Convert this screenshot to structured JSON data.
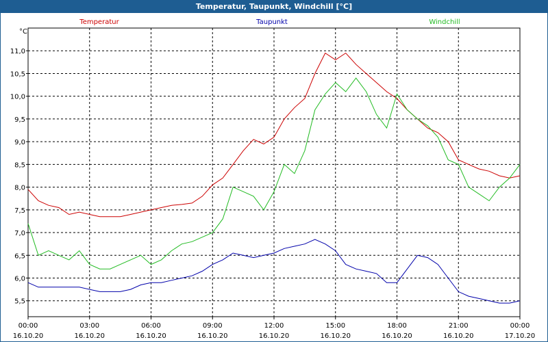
{
  "window": {
    "title": "Temperatur, Taupunkt, Windchill [°C]"
  },
  "chart_data": {
    "type": "line",
    "title": "Temperatur, Taupunkt, Windchill [°C]",
    "ylabel": "°C",
    "ylim": [
      5.15,
      11.5
    ],
    "yticks": [
      "5,5",
      "6,0",
      "6,5",
      "7,0",
      "7,5",
      "8,0",
      "8,5",
      "9,0",
      "9,5",
      "10,0",
      "10,5",
      "11,0"
    ],
    "xticks": [
      {
        "time": "00:00",
        "date": "16.10.20"
      },
      {
        "time": "03:00",
        "date": "16.10.20"
      },
      {
        "time": "06:00",
        "date": "16.10.20"
      },
      {
        "time": "09:00",
        "date": "16.10.20"
      },
      {
        "time": "12:00",
        "date": "16.10.20"
      },
      {
        "time": "15:00",
        "date": "16.10.20"
      },
      {
        "time": "18:00",
        "date": "16.10.20"
      },
      {
        "time": "21:00",
        "date": "16.10.20"
      },
      {
        "time": "00:00",
        "date": "17.10.20"
      }
    ],
    "x_hours": [
      0,
      0.5,
      1,
      1.5,
      2,
      2.5,
      3,
      3.5,
      4,
      4.5,
      5,
      5.5,
      6,
      6.5,
      7,
      7.5,
      8,
      8.5,
      9,
      9.5,
      10,
      10.5,
      11,
      11.5,
      12,
      12.5,
      13,
      13.5,
      14,
      14.5,
      15,
      15.5,
      16,
      16.5,
      17,
      17.5,
      18,
      18.5,
      19,
      19.5,
      20,
      20.5,
      21,
      21.5,
      22,
      22.5,
      23,
      23.5,
      24
    ],
    "grid": true,
    "series": [
      {
        "name": "Temperatur",
        "color": "#cc0000",
        "values": [
          7.95,
          7.7,
          7.6,
          7.55,
          7.4,
          7.45,
          7.4,
          7.35,
          7.35,
          7.35,
          7.4,
          7.45,
          7.5,
          7.55,
          7.6,
          7.62,
          7.65,
          7.8,
          8.05,
          8.2,
          8.5,
          8.8,
          9.05,
          8.95,
          9.1,
          9.5,
          9.75,
          9.95,
          10.5,
          10.95,
          10.8,
          10.95,
          10.7,
          10.5,
          10.3,
          10.1,
          9.95,
          9.7,
          9.5,
          9.3,
          9.2,
          9.0,
          8.6,
          8.5,
          8.4,
          8.35,
          8.25,
          8.2,
          8.25
        ]
      },
      {
        "name": "Taupunkt",
        "color": "#0000aa",
        "values": [
          5.9,
          5.8,
          5.8,
          5.8,
          5.8,
          5.8,
          5.75,
          5.7,
          5.7,
          5.7,
          5.75,
          5.85,
          5.9,
          5.9,
          5.95,
          6.0,
          6.05,
          6.15,
          6.3,
          6.4,
          6.55,
          6.5,
          6.45,
          6.5,
          6.55,
          6.65,
          6.7,
          6.75,
          6.85,
          6.75,
          6.6,
          6.3,
          6.2,
          6.15,
          6.1,
          5.9,
          5.9,
          6.2,
          6.5,
          6.45,
          6.3,
          6.0,
          5.7,
          5.6,
          5.55,
          5.5,
          5.45,
          5.45,
          5.5
        ]
      },
      {
        "name": "Windchill",
        "color": "#22bb22",
        "values": [
          7.2,
          6.5,
          6.6,
          6.5,
          6.4,
          6.6,
          6.3,
          6.2,
          6.2,
          6.3,
          6.4,
          6.5,
          6.3,
          6.4,
          6.6,
          6.75,
          6.8,
          6.9,
          7.0,
          7.3,
          8.0,
          7.9,
          7.8,
          7.5,
          7.9,
          8.5,
          8.3,
          8.8,
          9.7,
          10.05,
          10.3,
          10.1,
          10.4,
          10.1,
          9.6,
          9.3,
          10.05,
          9.7,
          9.5,
          9.35,
          9.1,
          8.6,
          8.5,
          8.0,
          7.85,
          7.7,
          8.0,
          8.2,
          8.5
        ]
      }
    ]
  }
}
